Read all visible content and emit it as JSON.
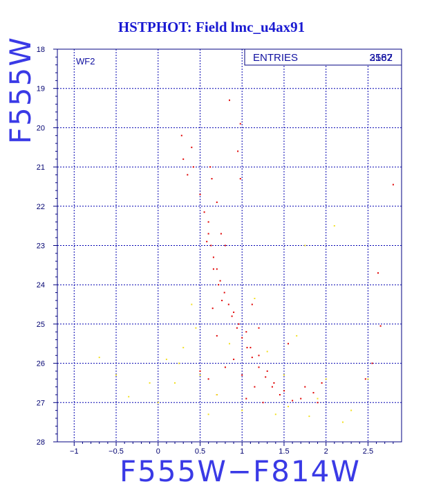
{
  "chart_data": {
    "type": "scatter",
    "title": "HSTPHOT: Field lmc_u4ax91",
    "xlabel": "F555W−F814W",
    "ylabel": "F555W",
    "xlim": [
      -1.2,
      2.9
    ],
    "ylim": [
      18,
      28
    ],
    "y_inverted": true,
    "grid": true,
    "x_ticks": [
      -1,
      -0.5,
      0,
      0.5,
      1,
      1.5,
      2,
      2.5
    ],
    "x_tick_labels": [
      "−1",
      "−0.5",
      "0",
      "0.5",
      "1",
      "1.5",
      "2",
      "2.5"
    ],
    "y_ticks": [
      18,
      19,
      20,
      21,
      22,
      23,
      24,
      25,
      26,
      27,
      28
    ],
    "y_tick_labels": [
      "18",
      "19",
      "20",
      "21",
      "22",
      "23",
      "24",
      "25",
      "26",
      "27",
      "28"
    ],
    "pad_label": "WF2",
    "stats_box": {
      "label": "ENTRIES",
      "value_a": "2587",
      "value_b": "3162"
    },
    "colors": {
      "main_series": "#e00000",
      "faint_series": "#f2e020",
      "grid": "#0000b0",
      "frame": "#000080"
    },
    "series": [
      {
        "color": "red",
        "points": [
          [
            0.64,
            21.3
          ],
          [
            0.55,
            22.15
          ],
          [
            0.6,
            22.4
          ],
          [
            0.6,
            22.7
          ],
          [
            0.63,
            23.0
          ],
          [
            0.66,
            23.3
          ],
          [
            0.7,
            23.6
          ],
          [
            0.74,
            23.9
          ],
          [
            0.79,
            24.2
          ],
          [
            0.84,
            24.5
          ],
          [
            0.88,
            24.8
          ],
          [
            0.94,
            25.1
          ],
          [
            1.0,
            25.35
          ],
          [
            1.06,
            25.6
          ],
          [
            1.12,
            25.85
          ],
          [
            1.2,
            26.1
          ],
          [
            1.28,
            26.35
          ],
          [
            1.36,
            26.6
          ],
          [
            1.45,
            26.8
          ],
          [
            1.6,
            26.95
          ],
          [
            0.58,
            22.9
          ],
          [
            0.66,
            23.6
          ],
          [
            0.72,
            24.0
          ],
          [
            0.76,
            24.4
          ],
          [
            0.9,
            24.7
          ],
          [
            0.96,
            25.0
          ],
          [
            1.05,
            25.2
          ],
          [
            1.1,
            25.6
          ],
          [
            1.2,
            25.8
          ],
          [
            1.3,
            26.2
          ],
          [
            1.38,
            26.5
          ],
          [
            1.5,
            26.7
          ],
          [
            1.7,
            26.9
          ],
          [
            0.9,
            25.9
          ],
          [
            1.0,
            26.3
          ],
          [
            1.15,
            26.6
          ],
          [
            0.8,
            26.1
          ],
          [
            1.05,
            26.9
          ],
          [
            1.25,
            27.0
          ],
          [
            0.7,
            25.3
          ],
          [
            0.3,
            20.8
          ],
          [
            0.35,
            21.2
          ],
          [
            0.42,
            21.0
          ],
          [
            0.28,
            20.2
          ],
          [
            0.4,
            20.5
          ],
          [
            0.5,
            21.7
          ],
          [
            0.62,
            21.0
          ],
          [
            0.7,
            21.9
          ],
          [
            0.95,
            20.6
          ],
          [
            0.98,
            19.9
          ],
          [
            0.85,
            19.3
          ],
          [
            0.98,
            21.3
          ],
          [
            2.65,
            25.05
          ],
          [
            2.8,
            21.45
          ],
          [
            2.62,
            23.7
          ],
          [
            2.55,
            26.0
          ],
          [
            2.47,
            26.4
          ],
          [
            0.6,
            26.4
          ],
          [
            0.7,
            26.8
          ],
          [
            1.55,
            25.5
          ],
          [
            1.75,
            26.6
          ],
          [
            1.85,
            26.75
          ],
          [
            1.9,
            27.0
          ],
          [
            1.95,
            26.5
          ],
          [
            0.5,
            26.2
          ],
          [
            0.8,
            23.0
          ],
          [
            0.75,
            22.7
          ],
          [
            1.12,
            24.5
          ],
          [
            1.2,
            25.1
          ],
          [
            0.65,
            24.6
          ]
        ]
      },
      {
        "color": "yellow",
        "points": [
          [
            0.5,
            26.3
          ],
          [
            0.7,
            26.8
          ],
          [
            0.2,
            26.5
          ],
          [
            0.1,
            25.9
          ],
          [
            -0.1,
            26.5
          ],
          [
            0.0,
            27.0
          ],
          [
            0.6,
            27.3
          ],
          [
            1.0,
            27.2
          ],
          [
            1.4,
            27.3
          ],
          [
            1.8,
            27.35
          ],
          [
            2.0,
            26.4
          ],
          [
            2.1,
            22.5
          ],
          [
            1.75,
            23.0
          ],
          [
            1.5,
            26.3
          ],
          [
            2.2,
            27.5
          ],
          [
            0.3,
            25.6
          ],
          [
            0.4,
            24.5
          ],
          [
            -0.7,
            25.85
          ],
          [
            -0.5,
            26.3
          ],
          [
            2.3,
            27.2
          ],
          [
            0.85,
            25.5
          ],
          [
            1.3,
            25.7
          ],
          [
            1.55,
            27.1
          ],
          [
            1.15,
            24.35
          ],
          [
            1.9,
            26.9
          ],
          [
            0.25,
            26.0
          ],
          [
            -0.35,
            26.85
          ],
          [
            2.5,
            26.4
          ],
          [
            0.45,
            25.1
          ],
          [
            1.65,
            25.3
          ]
        ]
      }
    ]
  }
}
